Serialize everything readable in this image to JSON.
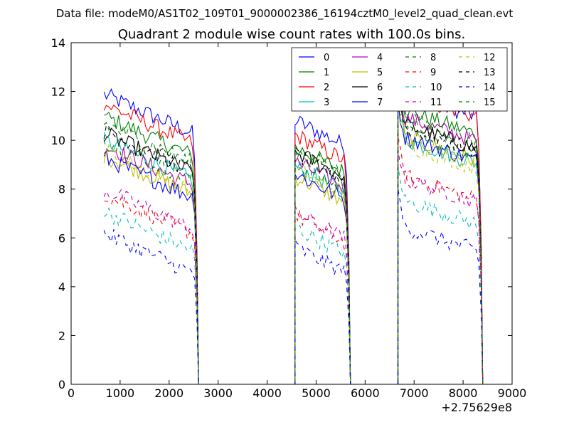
{
  "suptitle": "Data file: modeM0/AS1T02_109T01_9000002386_16194cztM0_level2_quad_clean.evt",
  "chart_data": {
    "type": "line",
    "title": "Quadrant 2 module wise count rates with 100.0s bins.",
    "xlabel": "",
    "ylabel": "",
    "x_offset_label": "+2.75629e8",
    "xlim": [
      0,
      9000
    ],
    "ylim": [
      0,
      14
    ],
    "xticks": [
      "0",
      "1000",
      "2000",
      "3000",
      "4000",
      "5000",
      "6000",
      "7000",
      "8000",
      "9000"
    ],
    "yticks": [
      "0",
      "2",
      "4",
      "6",
      "8",
      "10",
      "12",
      "14"
    ],
    "legend_position": "top-right",
    "segments": [
      {
        "start": 670,
        "end": 2570,
        "drop_to": 0
      },
      {
        "start": 4570,
        "end": 5670,
        "rise_from": 0,
        "drop_to": 0
      },
      {
        "start": 6670,
        "end": 8370,
        "rise_from": 0,
        "drop_to": 0
      }
    ],
    "series": [
      {
        "name": "0",
        "color": "#0000ff",
        "dash": false,
        "levels": [
          10.8,
          10.1,
          11.3
        ]
      },
      {
        "name": "1",
        "color": "#008000",
        "dash": false,
        "levels": [
          9.9,
          9.0,
          10.6
        ]
      },
      {
        "name": "2",
        "color": "#ff0000",
        "dash": false,
        "levels": [
          10.4,
          9.5,
          11.3
        ]
      },
      {
        "name": "3",
        "color": "#00bfbf",
        "dash": false,
        "levels": [
          8.9,
          8.2,
          9.4
        ]
      },
      {
        "name": "4",
        "color": "#bf00bf",
        "dash": false,
        "levels": [
          8.7,
          8.4,
          10.3
        ]
      },
      {
        "name": "5",
        "color": "#bfbf00",
        "dash": false,
        "levels": [
          8.3,
          7.8,
          9.5
        ]
      },
      {
        "name": "6",
        "color": "#000000",
        "dash": false,
        "levels": [
          9.2,
          8.8,
          10.0
        ]
      },
      {
        "name": "7",
        "color": "#0000ff",
        "dash": false,
        "levels": [
          8.2,
          7.9,
          9.5
        ]
      },
      {
        "name": "8",
        "color": "#008000",
        "dash": true,
        "levels": [
          8.9,
          8.3,
          9.7
        ]
      },
      {
        "name": "9",
        "color": "#ff0000",
        "dash": true,
        "levels": [
          6.7,
          6.2,
          7.9
        ]
      },
      {
        "name": "10",
        "color": "#00bfbf",
        "dash": true,
        "levels": [
          6.0,
          5.7,
          6.9
        ]
      },
      {
        "name": "11",
        "color": "#bf00bf",
        "dash": true,
        "levels": [
          6.9,
          6.3,
          7.8
        ]
      },
      {
        "name": "12",
        "color": "#bfbf00",
        "dash": true,
        "levels": [
          8.5,
          8.1,
          9.2
        ]
      },
      {
        "name": "13",
        "color": "#000000",
        "dash": true,
        "levels": [
          9.3,
          8.7,
          9.9
        ]
      },
      {
        "name": "14",
        "color": "#0000ff",
        "dash": true,
        "levels": [
          5.1,
          4.9,
          5.8
        ]
      },
      {
        "name": "15",
        "color": "#008000",
        "dash": true,
        "levels": [
          9.6,
          8.9,
          10.3
        ]
      }
    ]
  }
}
